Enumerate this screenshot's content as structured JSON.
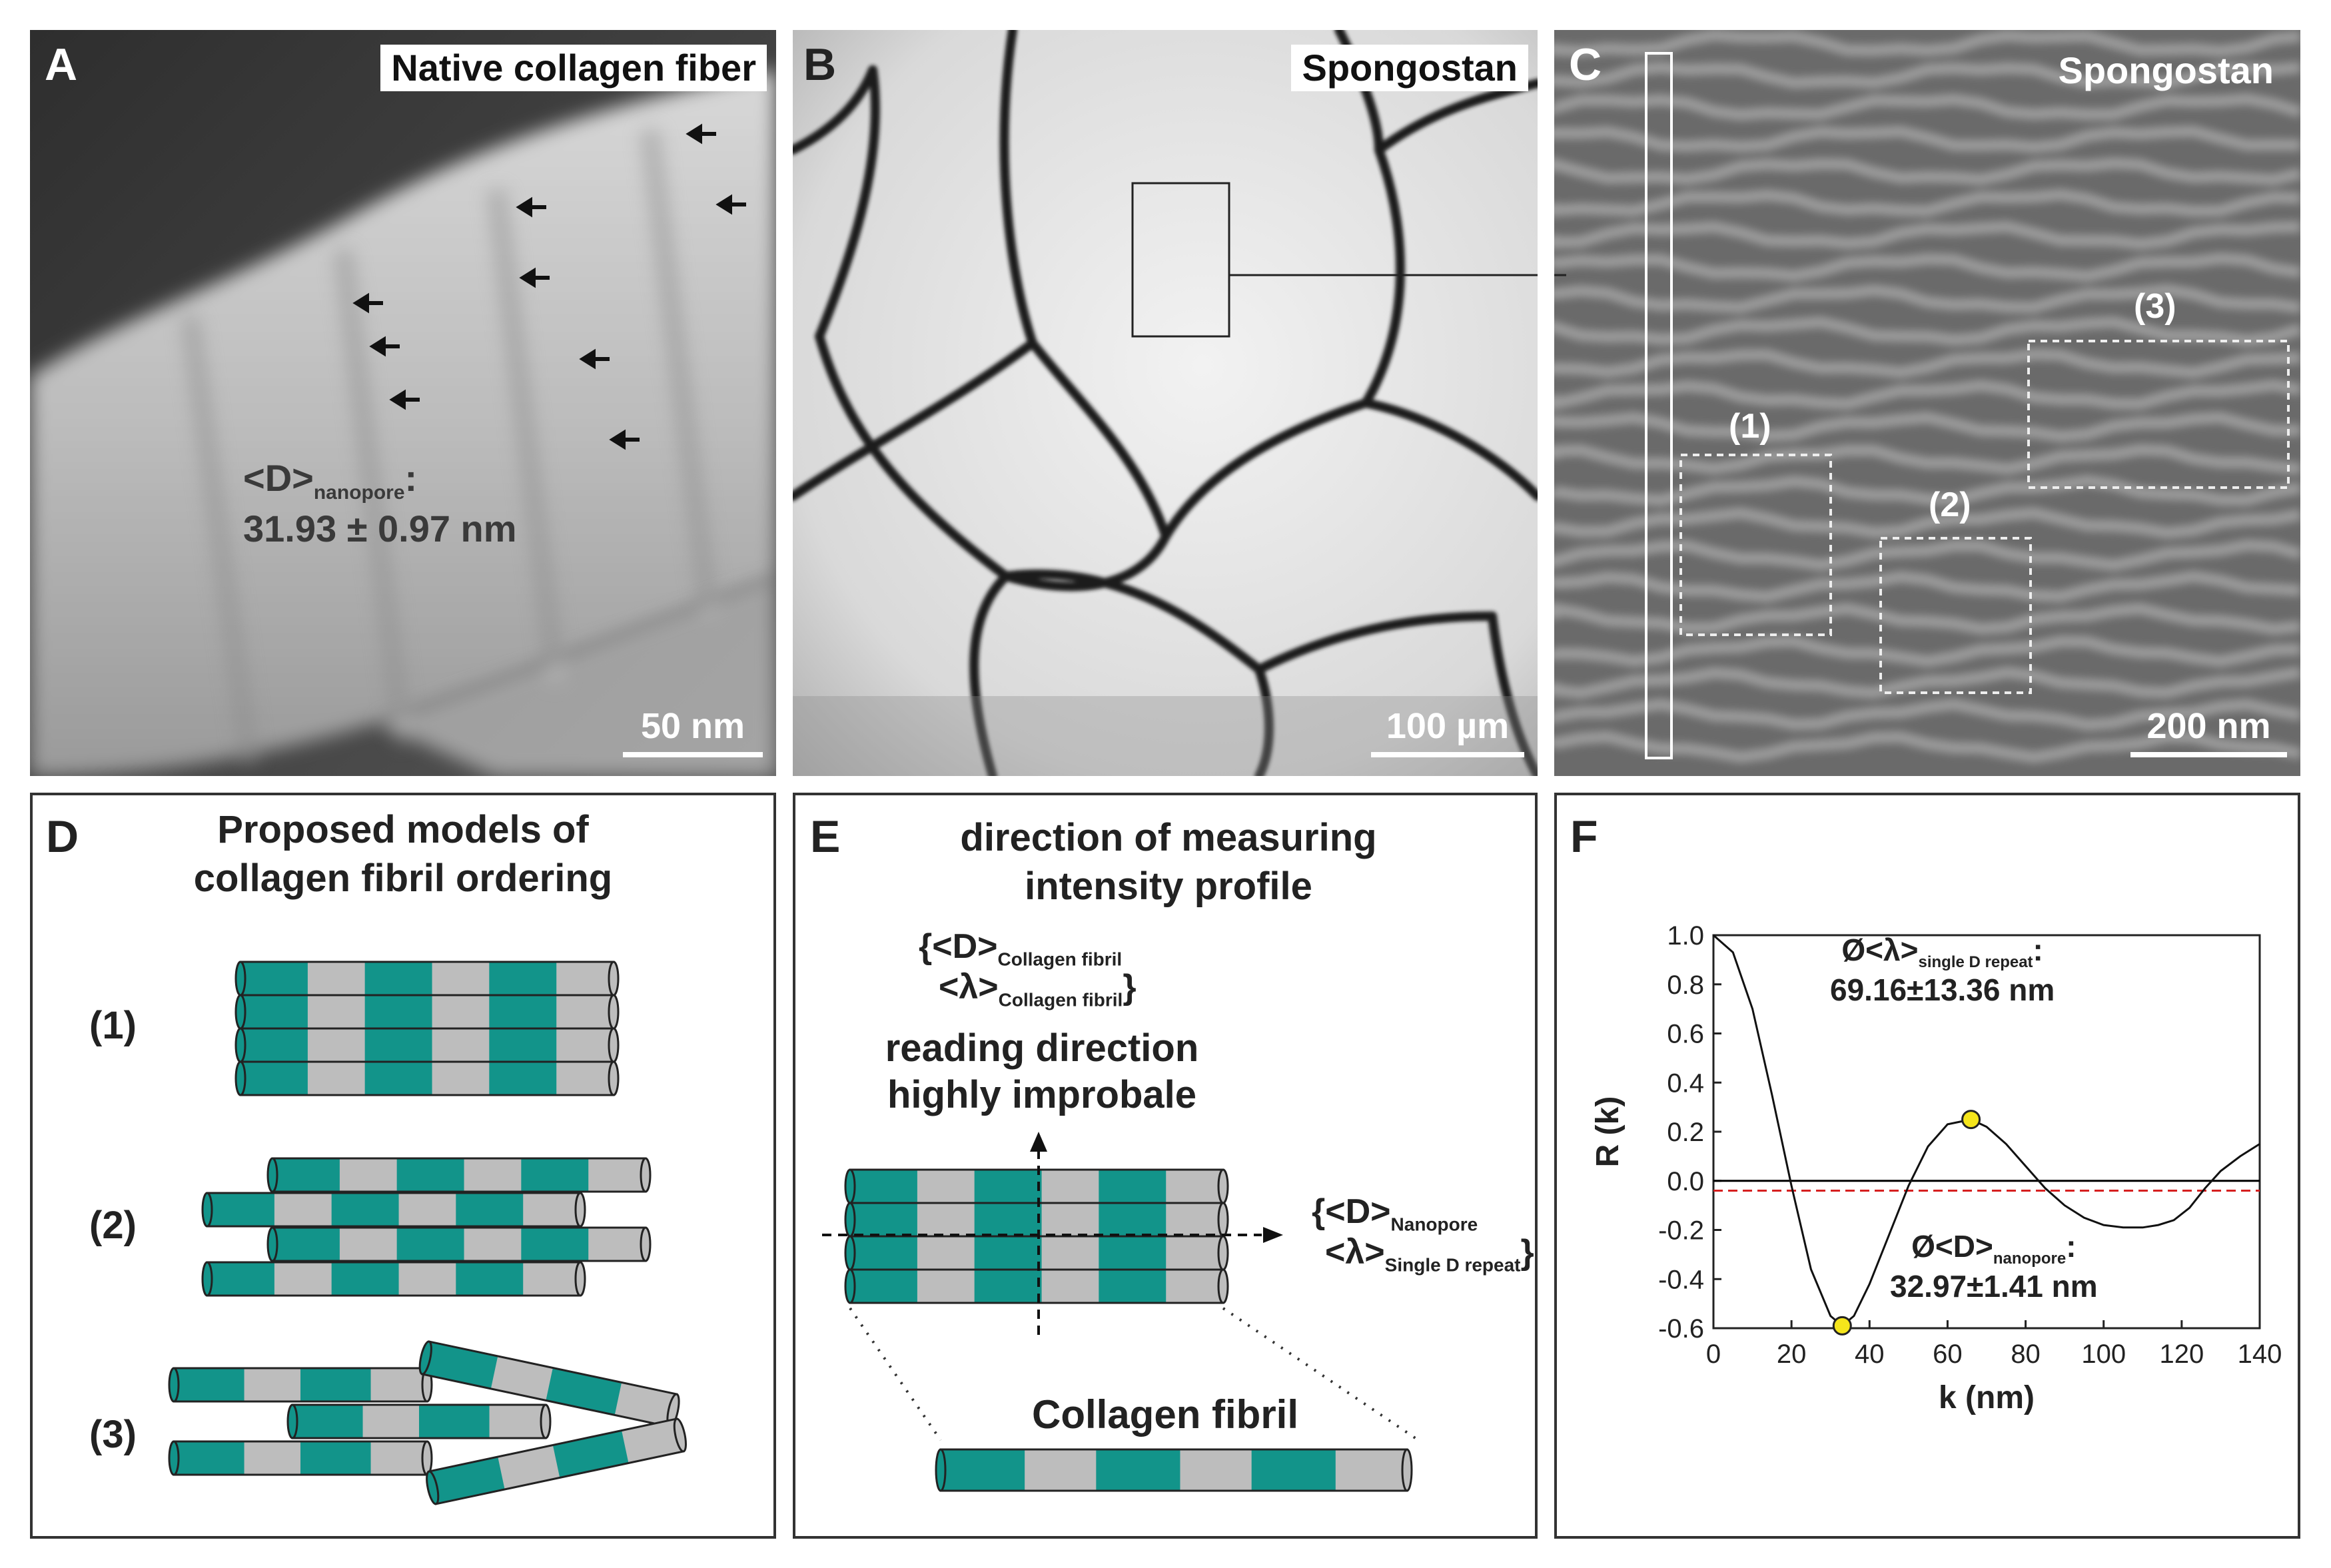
{
  "panels": {
    "A": {
      "letter": "A",
      "tag": "Native collagen fiber",
      "measure_label_main": "<D>",
      "measure_label_sub": "nanopore",
      "measure_value": "31.93 ± 0.97 nm",
      "scale_bar": "50 nm"
    },
    "B": {
      "letter": "B",
      "tag": "Spongostan",
      "scale_bar": "100 µm"
    },
    "C": {
      "letter": "C",
      "tag": "Spongostan",
      "roi_labels": [
        "(1)",
        "(2)",
        "(3)"
      ],
      "scale_bar": "200 nm"
    },
    "D": {
      "letter": "D",
      "title_line1": "Proposed models of",
      "title_line2": "collagen fibril ordering",
      "model_labels": [
        "(1)",
        "(2)",
        "(3)"
      ]
    },
    "E": {
      "letter": "E",
      "title_line1": "direction of measuring",
      "title_line2": "intensity profile",
      "vertical_D": "{<D>",
      "vertical_D_sub": "Collagen fibril",
      "vertical_L": "<λ>",
      "vertical_L_sub": "Collagen fibril",
      "vertical_close": "}",
      "reading_line1": "reading direction",
      "reading_line2": "highly improbale",
      "horizontal_D": "{<D>",
      "horizontal_D_sub": "Nanopore",
      "horizontal_L": "<λ>",
      "horizontal_L_sub": "Single D repeat",
      "horizontal_close": "}",
      "fibril_label": "Collagen fibril"
    },
    "F": {
      "letter": "F",
      "ylabel": "R (k)",
      "xlabel": "k (nm)",
      "peak_label_main": "Ø<λ>",
      "peak_label_sub": "single D repeat",
      "peak_label_colon": ":",
      "peak_value": "69.16±13.36 nm",
      "trough_label_main": "Ø<D>",
      "trough_label_sub": "nanopore",
      "trough_label_colon": ":",
      "trough_value": "32.97±1.41 nm"
    }
  },
  "colors": {
    "teal": "#12948a",
    "grey_band": "#bdbdbd",
    "marker_yellow": "#f5e51b",
    "dashed_red": "#d62020"
  },
  "chart_data": {
    "type": "line",
    "xlabel": "k (nm)",
    "ylabel": "R (k)",
    "xlim": [
      0,
      140
    ],
    "ylim": [
      -0.6,
      1.0
    ],
    "xticks": [
      0,
      20,
      40,
      60,
      80,
      100,
      120,
      140
    ],
    "yticks": [
      1.0,
      0.8,
      0.6,
      0.4,
      0.2,
      0.0,
      -0.2,
      -0.4,
      -0.6
    ],
    "ytick_labels": [
      "1.0",
      "0.8",
      "0.6",
      "0.4",
      "0.2",
      "0.0",
      "-0.2",
      "-0.4",
      "-0.6"
    ],
    "series": [
      {
        "x": [
          0,
          5,
          10,
          15,
          20,
          25,
          30,
          33,
          36,
          40,
          45,
          50,
          55,
          60,
          66,
          70,
          75,
          80,
          85,
          90,
          95,
          100,
          105,
          110,
          114,
          118,
          122,
          126,
          130,
          135,
          140
        ],
        "y": [
          1.0,
          0.93,
          0.7,
          0.35,
          -0.02,
          -0.36,
          -0.55,
          -0.59,
          -0.55,
          -0.42,
          -0.22,
          -0.02,
          0.14,
          0.23,
          0.25,
          0.22,
          0.15,
          0.06,
          -0.03,
          -0.1,
          -0.15,
          -0.18,
          -0.19,
          -0.19,
          -0.18,
          -0.16,
          -0.11,
          -0.03,
          0.04,
          0.1,
          0.15
        ]
      }
    ],
    "reference_lines": [
      {
        "y": 0.0,
        "style": "solid",
        "color": "#000000"
      },
      {
        "y": -0.04,
        "style": "dashed",
        "color": "#d62020"
      }
    ],
    "markers": [
      {
        "x": 33,
        "y": -0.59
      },
      {
        "x": 66,
        "y": 0.25
      }
    ],
    "grid": false
  }
}
